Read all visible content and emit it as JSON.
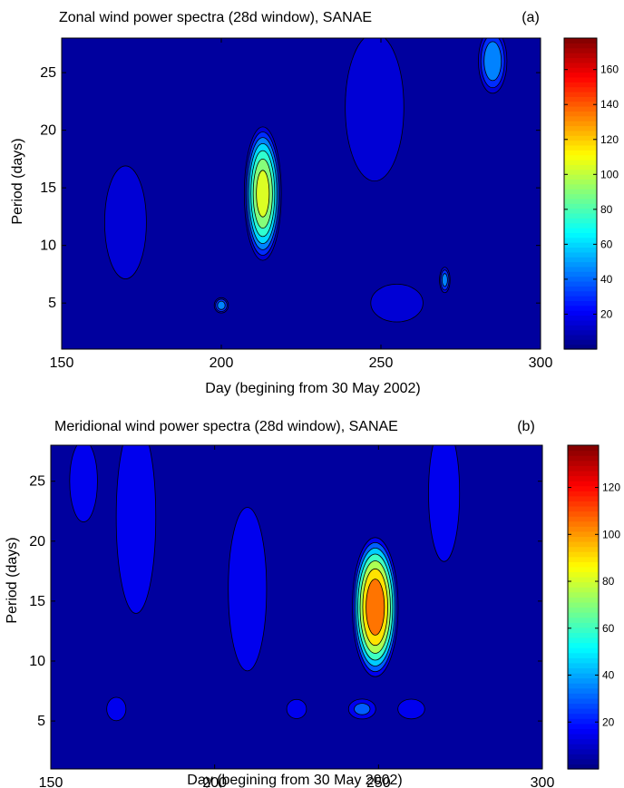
{
  "chart_data": [
    {
      "type": "heatmap",
      "title": "Zonal wind power spectra (28d window), SANAE",
      "panel_label": "(a)",
      "xlabel": "Day (begining from 30 May 2002)",
      "ylabel": "Period (days)",
      "xlim": [
        150,
        300
      ],
      "ylim": [
        1,
        28
      ],
      "xticks": [
        150,
        200,
        250,
        300
      ],
      "yticks": [
        5,
        10,
        15,
        20,
        25
      ],
      "colorbar": {
        "clim": [
          0,
          178
        ],
        "ticks": [
          20,
          40,
          60,
          80,
          100,
          120,
          140,
          160
        ],
        "colormap": "jet"
      },
      "peaks": [
        {
          "day": 213,
          "period": 14.5,
          "value": 110,
          "rx": 5,
          "ry": 5
        },
        {
          "day": 248,
          "period": 22,
          "value": 18,
          "rx": 10,
          "ry": 7
        },
        {
          "day": 285,
          "period": 26,
          "value": 55,
          "rx": 4,
          "ry": 2.5
        },
        {
          "day": 170,
          "period": 12,
          "value": 14,
          "rx": 8,
          "ry": 6
        },
        {
          "day": 200,
          "period": 4.8,
          "value": 50,
          "rx": 2,
          "ry": 0.6
        },
        {
          "day": 270,
          "period": 7,
          "value": 48,
          "rx": 1.5,
          "ry": 1
        },
        {
          "day": 255,
          "period": 5,
          "value": 14,
          "rx": 10,
          "ry": 2
        }
      ]
    },
    {
      "type": "heatmap",
      "title": "Meridional wind power spectra (28d window), SANAE",
      "panel_label": "(b)",
      "xlabel": "Day (begining from 30 May 2002)",
      "ylabel": "Period (days)",
      "xlim": [
        150,
        300
      ],
      "ylim": [
        1,
        28
      ],
      "xticks": [
        150,
        200,
        250,
        300
      ],
      "yticks": [
        5,
        10,
        15,
        20,
        25
      ],
      "colorbar": {
        "clim": [
          0,
          138
        ],
        "ticks": [
          20,
          40,
          60,
          80,
          100,
          120
        ],
        "colormap": "jet"
      },
      "peaks": [
        {
          "day": 249,
          "period": 14.5,
          "value": 115,
          "rx": 6,
          "ry": 5
        },
        {
          "day": 176,
          "period": 22,
          "value": 25,
          "rx": 6,
          "ry": 8
        },
        {
          "day": 210,
          "period": 16,
          "value": 22,
          "rx": 6,
          "ry": 7
        },
        {
          "day": 270,
          "period": 24,
          "value": 20,
          "rx": 5,
          "ry": 6
        },
        {
          "day": 160,
          "period": 25,
          "value": 15,
          "rx": 5,
          "ry": 4
        },
        {
          "day": 170,
          "period": 6,
          "value": 22,
          "rx": 3,
          "ry": 1
        },
        {
          "day": 225,
          "period": 6,
          "value": 25,
          "rx": 3,
          "ry": 0.8
        },
        {
          "day": 260,
          "period": 6,
          "value": 28,
          "rx": 4,
          "ry": 0.8
        },
        {
          "day": 245,
          "period": 6,
          "value": 30,
          "rx": 4,
          "ry": 0.8
        }
      ]
    }
  ],
  "colors": {
    "axis": "#000000",
    "background": "#ffffff",
    "contour": "#000000"
  }
}
